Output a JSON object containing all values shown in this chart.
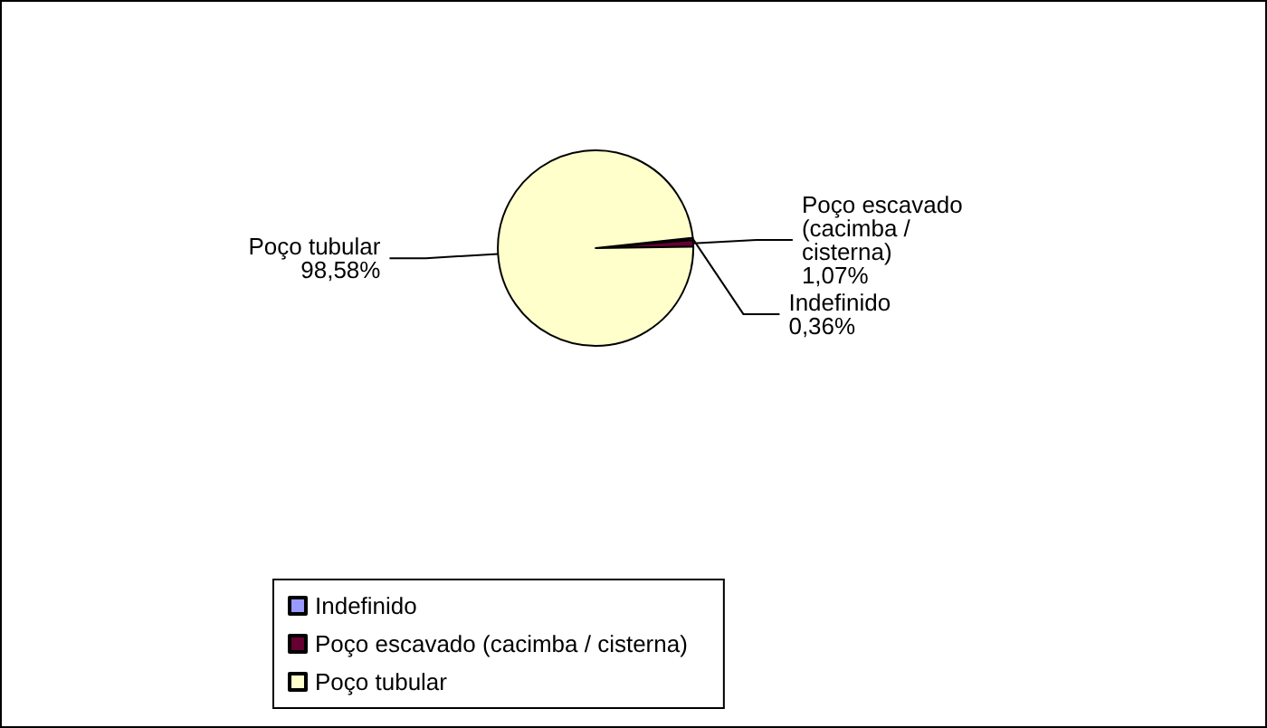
{
  "chart_data": {
    "type": "pie",
    "categories": [
      "Indefinido",
      "Poço escavado (cacimba / cisterna)",
      "Poço tubular"
    ],
    "values": [
      0.36,
      1.07,
      98.58
    ],
    "value_labels": [
      "0,36%",
      "1,07%",
      "98,58%"
    ],
    "colors": [
      "#9999ff",
      "#660033",
      "#ffffcc"
    ],
    "legend": "bottom"
  }
}
